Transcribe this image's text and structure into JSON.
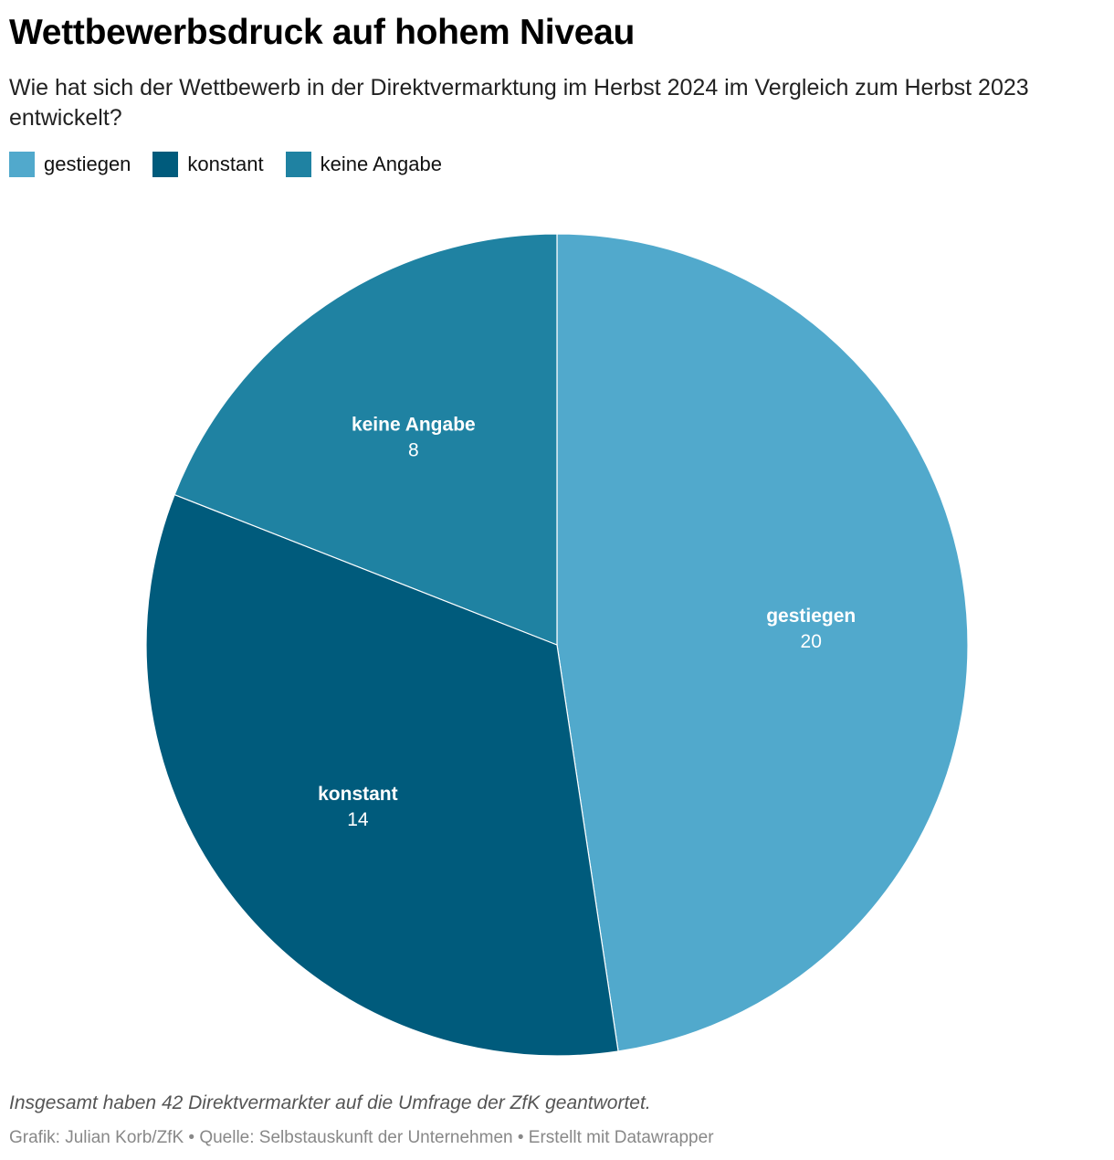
{
  "header": {
    "title": "Wettbewerbsdruck auf hohem Niveau",
    "subtitle": "Wie hat sich der Wettbewerb in der Direktvermarktung im Herbst 2024 im Vergleich zum Herbst 2023 entwickelt?"
  },
  "chart_data": {
    "type": "pie",
    "categories": [
      "gestiegen",
      "konstant",
      "keine Angabe"
    ],
    "values": [
      20,
      14,
      8
    ],
    "colors": [
      "#51a9cc",
      "#005b7c",
      "#1f82a2"
    ],
    "legend_position": "top-left"
  },
  "legend": {
    "items": [
      {
        "label": "gestiegen",
        "color": "#51a9cc"
      },
      {
        "label": "konstant",
        "color": "#005b7c"
      },
      {
        "label": "keine Angabe",
        "color": "#1f82a2"
      }
    ]
  },
  "notes": {
    "description": "Insgesamt haben 42 Direktvermarkter auf die Umfrage der ZfK geantwortet.",
    "footer": "Grafik: Julian Korb/ZfK • Quelle: Selbstauskunft der Unternehmen • Erstellt mit Datawrapper"
  }
}
